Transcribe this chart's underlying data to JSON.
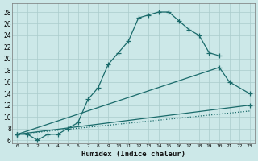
{
  "xlabel": "Humidex (Indice chaleur)",
  "bg_color": "#cce8e8",
  "grid_color": "#aacccc",
  "line_color": "#1a6b6b",
  "xlim": [
    -0.5,
    23.5
  ],
  "ylim": [
    5.5,
    29.5
  ],
  "xticks": [
    0,
    1,
    2,
    3,
    4,
    5,
    6,
    7,
    8,
    9,
    10,
    11,
    12,
    13,
    14,
    15,
    16,
    17,
    18,
    19,
    20,
    21,
    22,
    23
  ],
  "yticks": [
    6,
    8,
    10,
    12,
    14,
    16,
    18,
    20,
    22,
    24,
    26,
    28
  ],
  "curve1_x": [
    0,
    1,
    2,
    3,
    4,
    5,
    6,
    7,
    8,
    9,
    10,
    11,
    12,
    13,
    14,
    15,
    16,
    17,
    18,
    19,
    20
  ],
  "curve1_y": [
    7,
    7,
    6,
    7,
    7,
    8,
    9,
    13,
    15,
    19,
    21,
    23,
    27,
    27.5,
    28,
    28,
    26.5,
    25,
    24,
    21,
    20.5
  ],
  "curve2_x": [
    0,
    20,
    21,
    23
  ],
  "curve2_y": [
    7,
    18.5,
    16,
    14
  ],
  "curve3_x": [
    0,
    23
  ],
  "curve3_y": [
    7,
    12
  ],
  "curve4_x": [
    0,
    23
  ],
  "curve4_y": [
    7,
    11
  ]
}
